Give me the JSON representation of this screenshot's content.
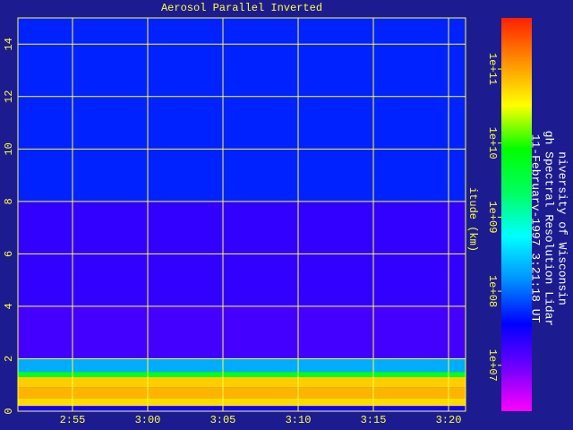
{
  "chart_data": {
    "type": "heatmap",
    "title": "Aerosol Parallel Inverted",
    "y_label": "itude (km)",
    "info": [
      "niversity of Wisconsin",
      "gh Spectral Resolution Lidar",
      "11-February-1997  3:21:18 UT"
    ],
    "xlim": [
      171.37,
      201.13
    ],
    "xticks": [
      {
        "value": 175,
        "label": "2:55"
      },
      {
        "value": 180,
        "label": "3:00"
      },
      {
        "value": 185,
        "label": "3:05"
      },
      {
        "value": 190,
        "label": "3:10"
      },
      {
        "value": 195,
        "label": "3:15"
      },
      {
        "value": 200,
        "label": "3:20"
      }
    ],
    "ylim": [
      0,
      15
    ],
    "yticks": [
      0,
      2,
      4,
      6,
      8,
      10,
      12,
      14
    ],
    "y_bins": [
      0,
      0.2,
      0.5,
      0.9,
      1.3,
      1.5,
      2,
      4,
      8,
      15
    ],
    "values": [
      30000000,
      50000000000,
      80000000000,
      60000000000,
      5000000000,
      200000000,
      16000000,
      20000000,
      50000000
    ],
    "log_scale": true,
    "clim": [
      2400000,
      490000000000
    ],
    "cticks": [
      {
        "value": 10000000,
        "label": "1e+07"
      },
      {
        "value": 100000000,
        "label": "1e+08"
      },
      {
        "value": 1000000000,
        "label": "1e+09"
      },
      {
        "value": 10000000000,
        "label": "1e+10"
      },
      {
        "value": 100000000000,
        "label": "1e+11"
      }
    ],
    "colormap": [
      "#ff00ff",
      "#7000ff",
      "#0000ff",
      "#0090ff",
      "#00ffff",
      "#00ff60",
      "#00ff00",
      "#ffff00",
      "#ff9000",
      "#ff2000"
    ],
    "grid": true,
    "grid_color": "#ffff40",
    "background": "#1c1c90"
  }
}
